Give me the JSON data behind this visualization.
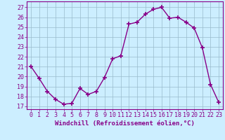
{
  "x": [
    0,
    1,
    2,
    3,
    4,
    5,
    6,
    7,
    8,
    9,
    10,
    11,
    12,
    13,
    14,
    15,
    16,
    17,
    18,
    19,
    20,
    21,
    22,
    23
  ],
  "y": [
    21.0,
    19.8,
    18.5,
    17.7,
    17.2,
    17.3,
    18.8,
    18.2,
    18.5,
    19.9,
    21.8,
    22.1,
    25.3,
    25.5,
    26.3,
    26.8,
    27.0,
    25.9,
    26.0,
    25.5,
    24.9,
    22.9,
    19.2,
    17.4
  ],
  "line_color": "#880088",
  "marker": "+",
  "marker_size": 4,
  "marker_linewidth": 1.2,
  "line_width": 1.0,
  "xlabel": "Windchill (Refroidissement éolien,°C)",
  "xlabel_fontsize": 6.5,
  "ylabel_ticks": [
    17,
    18,
    19,
    20,
    21,
    22,
    23,
    24,
    25,
    26,
    27
  ],
  "xticks": [
    0,
    1,
    2,
    3,
    4,
    5,
    6,
    7,
    8,
    9,
    10,
    11,
    12,
    13,
    14,
    15,
    16,
    17,
    18,
    19,
    20,
    21,
    22,
    23
  ],
  "ylim": [
    16.7,
    27.6
  ],
  "xlim": [
    -0.5,
    23.5
  ],
  "bg_color": "#cceeff",
  "grid_color": "#99bbcc",
  "tick_fontsize": 6
}
